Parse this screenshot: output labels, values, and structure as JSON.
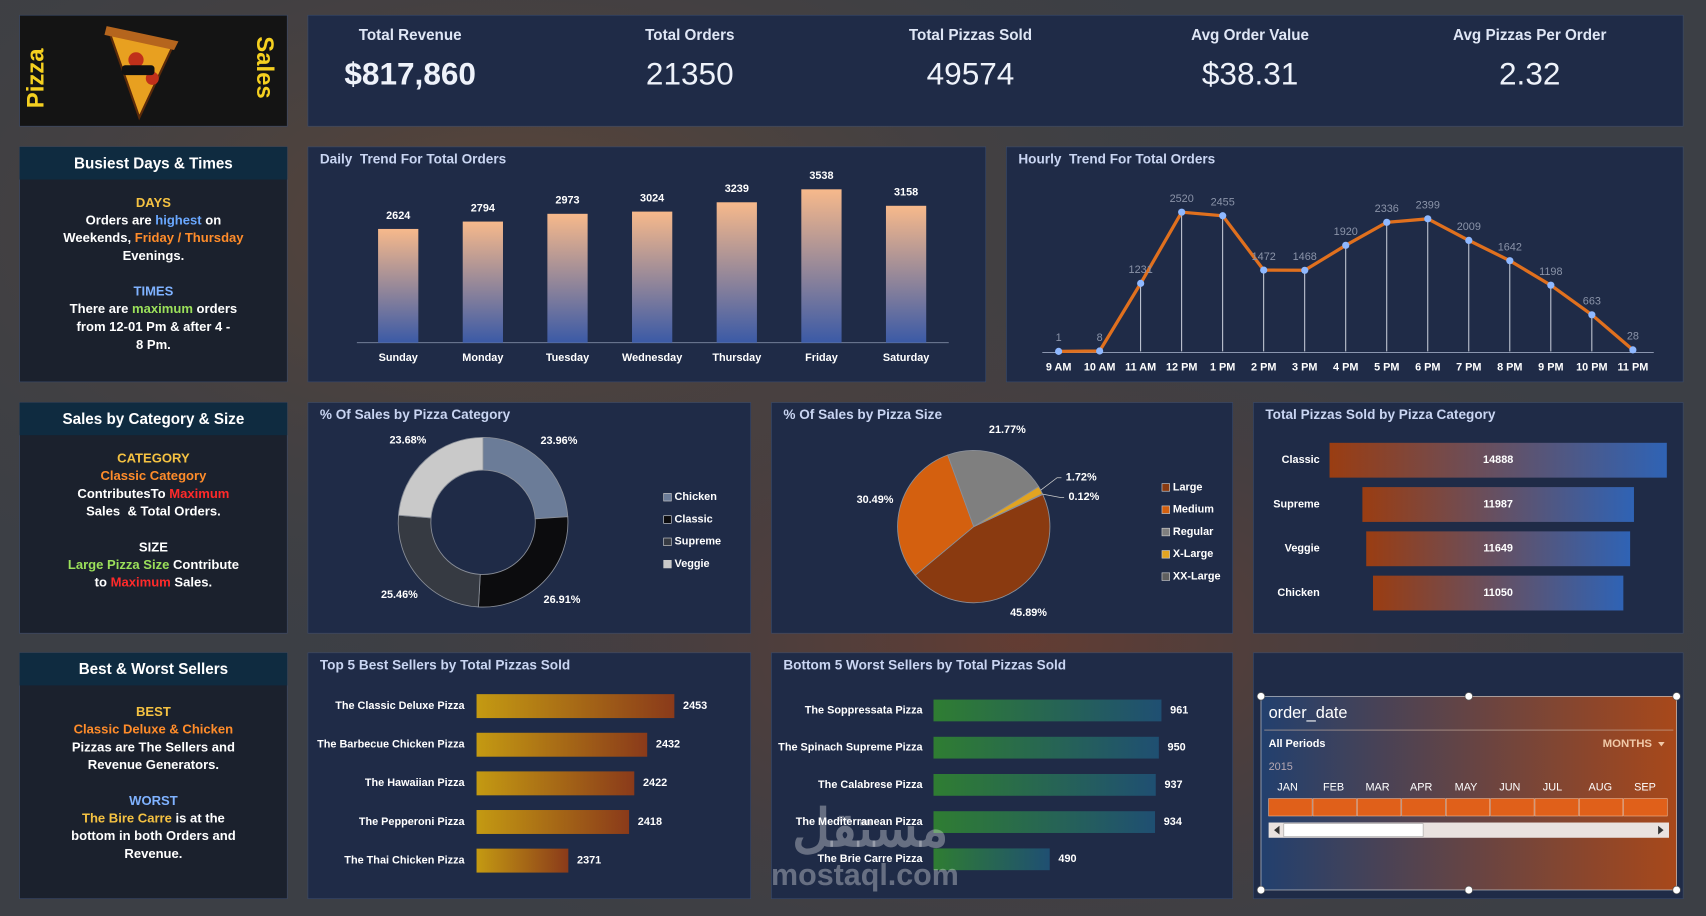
{
  "header": {
    "logo_left": "Pizza",
    "logo_right": "Sales"
  },
  "kpis": [
    {
      "label": "Total Revenue",
      "value": "$817,860"
    },
    {
      "label": "Total Orders",
      "value": "21350"
    },
    {
      "label": "Total Pizzas Sold",
      "value": "49574"
    },
    {
      "label": "Avg Order Value",
      "value": "$38.31"
    },
    {
      "label": "Avg Pizzas Per Order",
      "value": "2.32"
    }
  ],
  "insights": [
    {
      "title": "Busiest Days & Times",
      "sections": [
        {
          "heading": "DAYS",
          "heading_color": "#f5c242",
          "lines": [
            [
              {
                "text": "Orders are "
              },
              {
                "text": "highest",
                "color": "#6aa8ff"
              },
              {
                "text": " on"
              }
            ],
            [
              {
                "text": "Weekends, "
              },
              {
                "text": "Friday / Thursday",
                "color": "#ff8c2a"
              }
            ],
            [
              {
                "text": "Evenings."
              }
            ]
          ]
        },
        {
          "heading": "TIMES",
          "heading_color": "#7fb2ff",
          "lines": [
            [
              {
                "text": "There are "
              },
              {
                "text": "maximum",
                "color": "#9be05a"
              },
              {
                "text": " orders"
              }
            ],
            [
              {
                "text": "from 12-01 Pm & after 4 -"
              }
            ],
            [
              {
                "text": "8 Pm."
              }
            ]
          ]
        }
      ]
    },
    {
      "title": "Sales by Category & Size",
      "sections": [
        {
          "heading": "CATEGORY",
          "heading_color": "#f5c242",
          "lines": [
            [
              {
                "text": "Classic Category",
                "color": "#ff8c2a"
              }
            ],
            [
              {
                "text": "ContributesTo "
              },
              {
                "text": "Maximum",
                "color": "#ff2a2a"
              }
            ],
            [
              {
                "text": "Sales  & Total Orders."
              }
            ]
          ]
        },
        {
          "heading": "SIZE",
          "heading_color": "#ffffff",
          "lines": [
            [
              {
                "text": "Large Pizza Size",
                "color": "#9be05a"
              },
              {
                "text": " Contribute"
              }
            ],
            [
              {
                "text": "to "
              },
              {
                "text": "Maximum",
                "color": "#ff2a2a"
              },
              {
                "text": " Sales."
              }
            ]
          ]
        }
      ]
    },
    {
      "title": "Best & Worst Sellers",
      "sections": [
        {
          "heading": "BEST",
          "heading_color": "#f5c242",
          "lines": [
            [
              {
                "text": "Classic Deluxe & Chicken",
                "color": "#ff8c2a"
              }
            ],
            [
              {
                "text": "Pizzas are The Sellers and"
              }
            ],
            [
              {
                "text": "Revenue Generators."
              }
            ]
          ]
        },
        {
          "heading": "WORST",
          "heading_color": "#7fb2ff",
          "lines": [
            [
              {
                "text": "The Bire Carre",
                "color": "#f5c242"
              },
              {
                "text": " is at the"
              }
            ],
            [
              {
                "text": "bottom in both Orders and"
              }
            ],
            [
              {
                "text": "Revenue."
              }
            ]
          ]
        }
      ]
    }
  ],
  "chart_data": [
    {
      "type": "bar",
      "title": "Daily  Trend For Total Orders",
      "categories": [
        "Sunday",
        "Monday",
        "Tuesday",
        "Wednesday",
        "Thursday",
        "Friday",
        "Saturday"
      ],
      "values": [
        2624,
        2794,
        2973,
        3024,
        3239,
        3538,
        3158
      ],
      "gradient": [
        "#f7b98b",
        "#3b5aa6"
      ]
    },
    {
      "type": "line",
      "title": "Hourly  Trend For Total Orders",
      "categories": [
        "9 AM",
        "10 AM",
        "11 AM",
        "12 PM",
        "1 PM",
        "2 PM",
        "3 PM",
        "4 PM",
        "5 PM",
        "6 PM",
        "7 PM",
        "8 PM",
        "9 PM",
        "10 PM",
        "11 PM"
      ],
      "values": [
        1,
        8,
        1231,
        2520,
        2455,
        1472,
        1468,
        1920,
        2336,
        2399,
        2009,
        1642,
        1198,
        663,
        28
      ],
      "color": "#e0701e",
      "marker_color": "#8fb8ff"
    },
    {
      "type": "donut",
      "title": "% Of Sales by Pizza Category",
      "categories": [
        "Chicken",
        "Classic",
        "Supreme",
        "Veggie"
      ],
      "values": [
        23.96,
        26.91,
        25.46,
        23.68
      ],
      "value_labels": [
        "23.96%",
        "26.91%",
        "25.46%",
        "23.68%"
      ],
      "colors": [
        "#6b7c98",
        "#0c0c0e",
        "#363a42",
        "#c9c9c9"
      ]
    },
    {
      "type": "pie",
      "title": "% Of Sales by Pizza Size",
      "categories": [
        "Large",
        "Medium",
        "Regular",
        "X-Large",
        "XX-Large"
      ],
      "values": [
        45.89,
        30.49,
        21.77,
        1.72,
        0.12
      ],
      "value_labels": [
        "45.89%",
        "30.49%",
        "21.77%",
        "1.72%",
        "0.12%"
      ],
      "colors": [
        "#8a3a10",
        "#d4600f",
        "#7f7f7f",
        "#e2a421",
        "#5f5f5f"
      ]
    },
    {
      "type": "funnel",
      "title": "Total Pizzas Sold by Pizza Category",
      "categories": [
        "Classic",
        "Supreme",
        "Veggie",
        "Chicken"
      ],
      "values": [
        14888,
        11987,
        11649,
        11050
      ],
      "gradient": [
        "#9a3d12",
        "#2f63b5"
      ]
    },
    {
      "type": "bar",
      "orientation": "horizontal",
      "title": "Top 5 Best Sellers by Total Pizzas Sold",
      "categories": [
        "The Classic Deluxe Pizza",
        "The Barbecue Chicken Pizza",
        "The Hawaiian Pizza",
        "The Pepperoni Pizza",
        "The Thai Chicken Pizza"
      ],
      "values": [
        2453,
        2432,
        2422,
        2418,
        2371
      ],
      "xlim": [
        2300,
        2470
      ],
      "gradient": [
        "#c49a12",
        "#8a3a1a"
      ]
    },
    {
      "type": "bar",
      "orientation": "horizontal",
      "title": "Bottom 5 Worst Sellers by Total Pizzas Sold",
      "categories": [
        "The Soppressata Pizza",
        "The Spinach Supreme Pizza",
        "The Calabrese Pizza",
        "The Mediterranean Pizza",
        "The Brie Carre Pizza"
      ],
      "values": [
        961,
        950,
        937,
        934,
        490
      ],
      "xlim": [
        0,
        1000
      ],
      "gradient": [
        "#2f7d32",
        "#1f4f72"
      ]
    }
  ],
  "slicer": {
    "title": "order_date",
    "selection": "All Periods",
    "level": "MONTHS",
    "year": "2015",
    "months": [
      "JAN",
      "FEB",
      "MAR",
      "APR",
      "MAY",
      "JUN",
      "JUL",
      "AUG",
      "SEP"
    ]
  },
  "watermark": {
    "arabic": "مستقل",
    "latin": "mostaql.com"
  }
}
